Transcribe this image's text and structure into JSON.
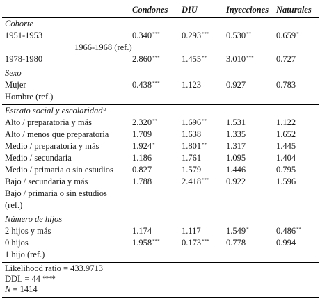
{
  "headers": [
    "Condones",
    "DIU",
    "Inyecciones",
    "Naturales"
  ],
  "sections": [
    {
      "title": "Cohorte",
      "rows": [
        {
          "label": "1951-1953",
          "cells": [
            {
              "v": "0.340",
              "s": "***"
            },
            {
              "v": "0.293",
              "s": "***"
            },
            {
              "v": "0.530",
              "s": "**"
            },
            {
              "v": "0.659",
              "s": "*"
            }
          ]
        },
        {
          "label": "1966-1968 (ref.)",
          "indent": true,
          "cells": []
        },
        {
          "label": "1978-1980",
          "cells": [
            {
              "v": "2.860",
              "s": "***"
            },
            {
              "v": "1.455",
              "s": "**"
            },
            {
              "v": "3.010",
              "s": "***"
            },
            {
              "v": "0.727",
              "s": ""
            }
          ]
        }
      ]
    },
    {
      "title": "Sexo",
      "rows": [
        {
          "label": "Mujer",
          "cells": [
            {
              "v": "0.438",
              "s": "***"
            },
            {
              "v": "1.123",
              "s": ""
            },
            {
              "v": "0.927",
              "s": ""
            },
            {
              "v": "0.783",
              "s": ""
            }
          ]
        },
        {
          "label": "Hombre (ref.)",
          "cells": []
        }
      ]
    },
    {
      "title": "Estrato social y escolaridad",
      "title_sup": "a",
      "rows": [
        {
          "label": "Alto / preparatoria y más",
          "cells": [
            {
              "v": "2.320",
              "s": "**"
            },
            {
              "v": "1.696",
              "s": "**"
            },
            {
              "v": "1.531",
              "s": ""
            },
            {
              "v": "1.122",
              "s": ""
            }
          ]
        },
        {
          "label": "Alto / menos que preparatoria",
          "cells": [
            {
              "v": "1.709",
              "s": ""
            },
            {
              "v": "1.638",
              "s": ""
            },
            {
              "v": "1.335",
              "s": ""
            },
            {
              "v": "1.652",
              "s": ""
            }
          ]
        },
        {
          "label": "Medio / preparatoria y más",
          "cells": [
            {
              "v": "1.924",
              "s": "*"
            },
            {
              "v": "1.801",
              "s": "**"
            },
            {
              "v": "1.317",
              "s": ""
            },
            {
              "v": "1.445",
              "s": ""
            }
          ]
        },
        {
          "label": "Medio / secundaria",
          "cells": [
            {
              "v": "1.186",
              "s": ""
            },
            {
              "v": "1.761",
              "s": ""
            },
            {
              "v": "1.095",
              "s": ""
            },
            {
              "v": "1.404",
              "s": ""
            }
          ]
        },
        {
          "label": "Medio / primaria o sin estudios",
          "cells": [
            {
              "v": "0.827",
              "s": ""
            },
            {
              "v": "1.579",
              "s": ""
            },
            {
              "v": "1.446",
              "s": ""
            },
            {
              "v": "0.795",
              "s": ""
            }
          ]
        },
        {
          "label": "Bajo / secundaria y más",
          "cells": [
            {
              "v": "1.788",
              "s": ""
            },
            {
              "v": "2.418",
              "s": "***"
            },
            {
              "v": "0.922",
              "s": ""
            },
            {
              "v": "1.596",
              "s": ""
            }
          ]
        },
        {
          "label": "Bajo / primaria o sin estudios",
          "cells": []
        },
        {
          "label": "(ref.)",
          "cells": []
        }
      ]
    },
    {
      "title": "Número de hijos",
      "rows": [
        {
          "label": "2 hijos y más",
          "cells": [
            {
              "v": "1.174",
              "s": ""
            },
            {
              "v": "1.117",
              "s": ""
            },
            {
              "v": "1.549",
              "s": "*"
            },
            {
              "v": "0.486",
              "s": "**"
            }
          ]
        },
        {
          "label": "0 hijos",
          "cells": [
            {
              "v": "1.958",
              "s": "***"
            },
            {
              "v": "0.173",
              "s": "***"
            },
            {
              "v": "0.778",
              "s": ""
            },
            {
              "v": "0.994",
              "s": ""
            }
          ]
        },
        {
          "label": "1 hijo (ref.)",
          "cells": []
        }
      ]
    }
  ],
  "footer": {
    "likelihood": "Likelihood ratio = 433.9713",
    "ddl": "DDL = 44 ***",
    "n_italic": "N",
    "n_rest": " = 1414"
  }
}
